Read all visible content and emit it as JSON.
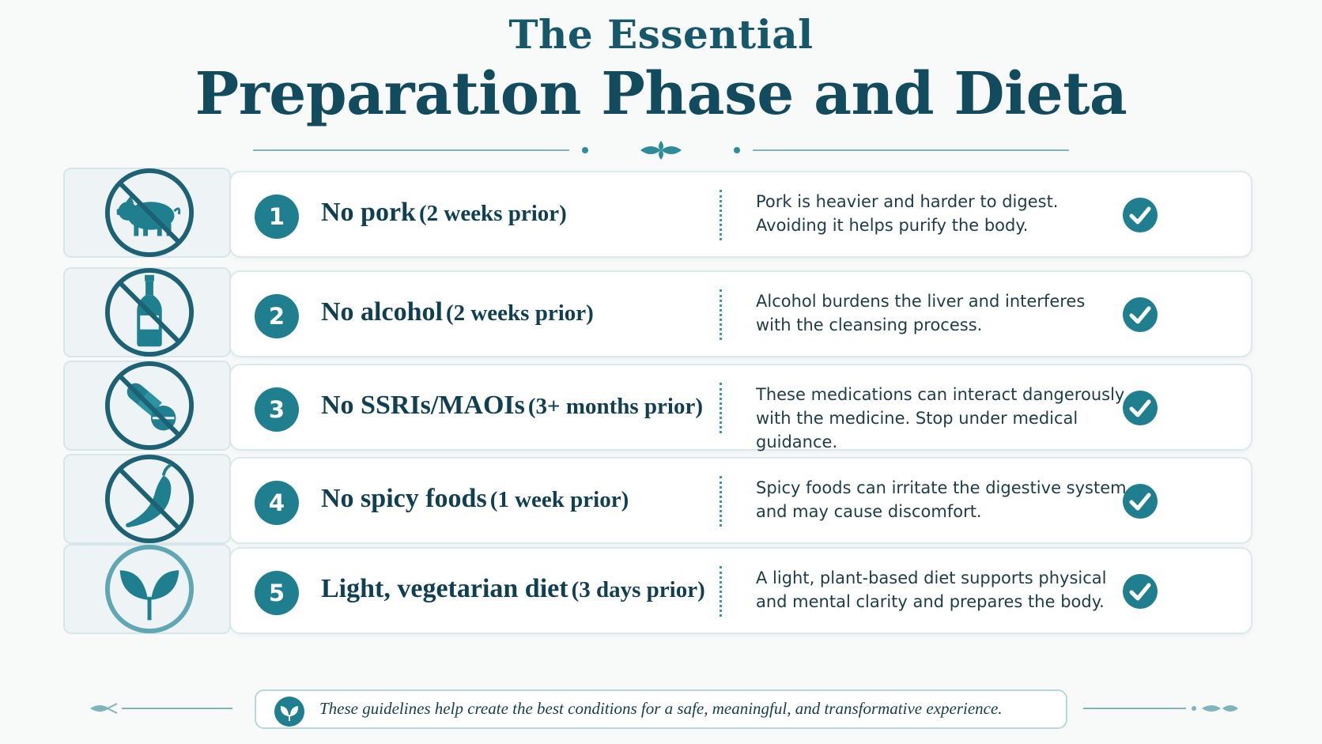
{
  "header": {
    "title_line1": "The Essential",
    "title_line2": "Preparation Phase and Dieta"
  },
  "colors": {
    "teal": "#1f7f8f",
    "navy": "#113f52",
    "background": "#f8fafa"
  },
  "rules": [
    {
      "number": "1",
      "icon": "no-pork-icon",
      "title": "No pork",
      "timing": "(2 weeks prior)",
      "desc_line1": "Pork is heavier and harder to digest.",
      "desc_line2": "Avoiding it helps purify the body."
    },
    {
      "number": "2",
      "icon": "no-alcohol-icon",
      "title": "No alcohol",
      "timing": "(2 weeks prior)",
      "desc_line1": "Alcohol burdens the liver and interferes",
      "desc_line2": "with the cleansing process."
    },
    {
      "number": "3",
      "icon": "no-pills-icon",
      "title": "No SSRIs/MAOIs",
      "timing": "(3+ months prior)",
      "desc_line1": "These medications can interact dangerously",
      "desc_line2": "with the medicine. Stop under medical guidance."
    },
    {
      "number": "4",
      "icon": "no-chili-icon",
      "title": "No spicy foods",
      "timing": "(1 week prior)",
      "desc_line1": "Spicy foods can irritate the digestive system",
      "desc_line2": "and may cause discomfort."
    },
    {
      "number": "5",
      "icon": "leaf-icon",
      "title": "Light, vegetarian diet",
      "timing": "(3 days prior)",
      "desc_line1": "A light, plant-based diet supports physical",
      "desc_line2": "and mental clarity and prepares the body."
    }
  ],
  "footer": {
    "text": "These guidelines help create the best conditions for a safe, meaningful, and transformative experience."
  }
}
